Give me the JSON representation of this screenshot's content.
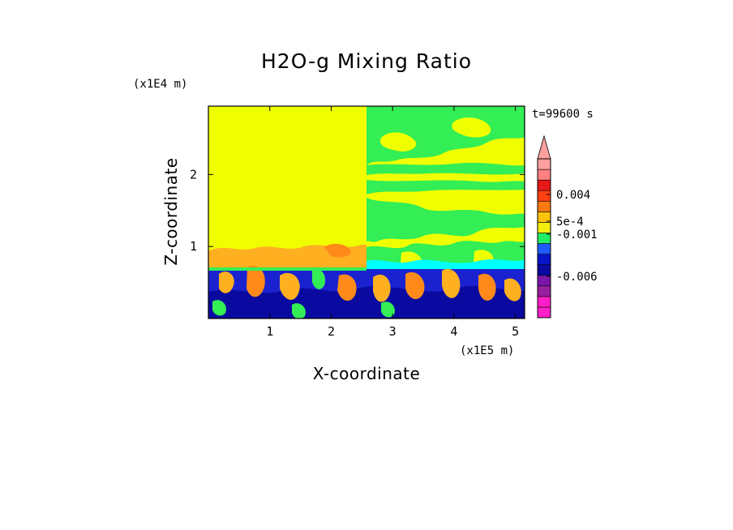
{
  "chart_data": {
    "type": "heatmap",
    "title": "H2O-g Mixing Ratio",
    "xlabel": "X-coordinate",
    "ylabel": "Z-coordinate",
    "x_unit": "(x1E5 m)",
    "y_unit": "(x1E4 m)",
    "time_label": "t=99600 s",
    "xlim": [
      0,
      5.15
    ],
    "ylim": [
      0,
      2.95
    ],
    "x_ticks": [
      "1",
      "2",
      "3",
      "4",
      "5"
    ],
    "x_tick_values": [
      1,
      2,
      3,
      4,
      5
    ],
    "y_ticks": [
      "1",
      "2"
    ],
    "y_tick_values": [
      1,
      2
    ],
    "colorbar": {
      "colors": [
        "#ff1fc8",
        "#ff1fc8",
        "#9a1fa0",
        "#7a16a8",
        "#0a0aa0",
        "#0a14c8",
        "#1e5cff",
        "#22ee66",
        "#f4ee10",
        "#ffc20a",
        "#ff7a10",
        "#ff4010",
        "#e81818",
        "#ff8080",
        "#ffa0a0"
      ],
      "tick_labels": [
        "0.004",
        "5e-4",
        "-0.001",
        "-0.006"
      ],
      "tick_values": [
        0.004,
        0.0005,
        -0.001,
        -0.006
      ],
      "extend_arrow_color": "#ffa0a0"
    },
    "field_colors": {
      "background": "#f0ff00",
      "green": "#33ee55",
      "cyan": "#00ffff",
      "orange": "#ffb020",
      "dark_orange": "#ff8a1a",
      "blue": "#1a22d0",
      "dark_blue": "#0a0aa0"
    }
  }
}
